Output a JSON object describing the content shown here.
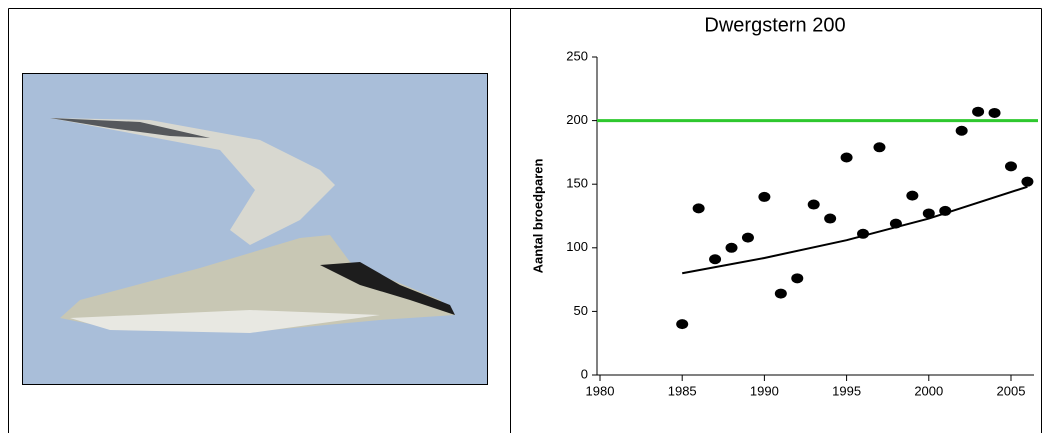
{
  "chart_data": {
    "type": "scatter",
    "title": "Dwergstern 200",
    "y_label": "Aantal broedparen",
    "x": [
      1985,
      1986,
      1987,
      1988,
      1989,
      1990,
      1991,
      1992,
      1993,
      1994,
      1995,
      1996,
      1997,
      1998,
      1999,
      2000,
      2001,
      2002,
      2003,
      2004,
      2005,
      2006
    ],
    "values": [
      40,
      131,
      91,
      100,
      108,
      140,
      64,
      76,
      134,
      123,
      171,
      111,
      179,
      119,
      141,
      127,
      129,
      192,
      207,
      206,
      164,
      152
    ],
    "color": "#000000",
    "trend": {
      "x": [
        1985,
        1990,
        1995,
        2000,
        2006
      ],
      "values": [
        80,
        92,
        106,
        123,
        148
      ],
      "color": "#000000"
    },
    "reference_line": {
      "value": 200,
      "color": "#2ec82e"
    },
    "xlim": [
      1980,
      2006.4
    ],
    "ylim": [
      0,
      250
    ],
    "xticks": [
      1980,
      1985,
      1990,
      1995,
      2000,
      2005
    ],
    "yticks": [
      0,
      50,
      100,
      150,
      200,
      250
    ]
  }
}
